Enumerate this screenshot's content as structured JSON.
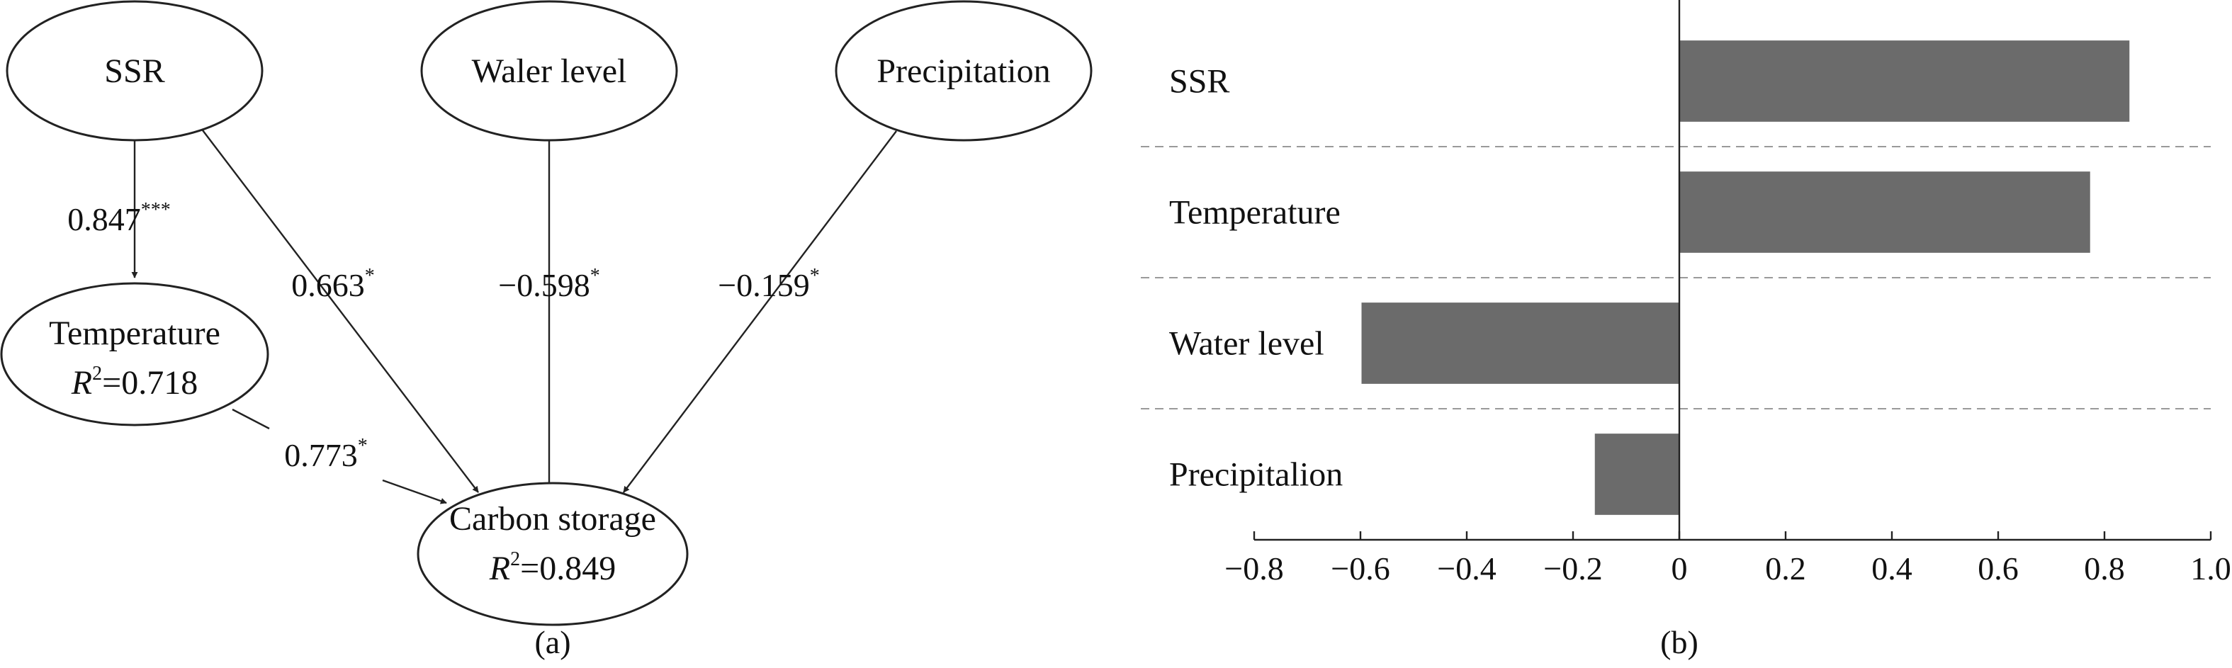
{
  "panel_a": {
    "caption": "(a)",
    "nodes": {
      "ssr": "SSR",
      "water_level": "Waler level",
      "precipitation": "Precipitation",
      "temperature": "Temperature",
      "temperature_r2": "=0.718",
      "carbon_storage": "Carbon storage",
      "carbon_storage_r2": "=0.849",
      "r_symbol": "R",
      "r_exp": "2"
    },
    "paths": {
      "ssr_to_temperature": "0.847",
      "ssr_to_temperature_sig": "***",
      "ssr_to_carbon": "0.663",
      "ssr_to_carbon_sig": "*",
      "water_to_carbon": "−0.598",
      "water_to_carbon_sig": "*",
      "precip_to_carbon": "−0.159",
      "precip_to_carbon_sig": "*",
      "temp_to_carbon": "0.773",
      "temp_to_carbon_sig": "*"
    }
  },
  "panel_b": {
    "caption": "(b)"
  },
  "chart_data": {
    "type": "bar",
    "orientation": "horizontal",
    "categories": [
      "SSR",
      "Temperature",
      "Water level",
      "Precipitalion"
    ],
    "values": [
      0.847,
      0.773,
      -0.598,
      -0.159
    ],
    "xlim": [
      -0.8,
      1.0
    ],
    "xticks": [
      "−0.8",
      "−0.6",
      "−0.4",
      "−0.2",
      "0",
      "0.2",
      "0.4",
      "0.6",
      "0.8",
      "1.0"
    ],
    "xtick_values": [
      -0.8,
      -0.6,
      -0.4,
      -0.2,
      0,
      0.2,
      0.4,
      0.6,
      0.8,
      1.0
    ],
    "bar_color": "#6b6b6b",
    "category_separators": "dashed"
  }
}
